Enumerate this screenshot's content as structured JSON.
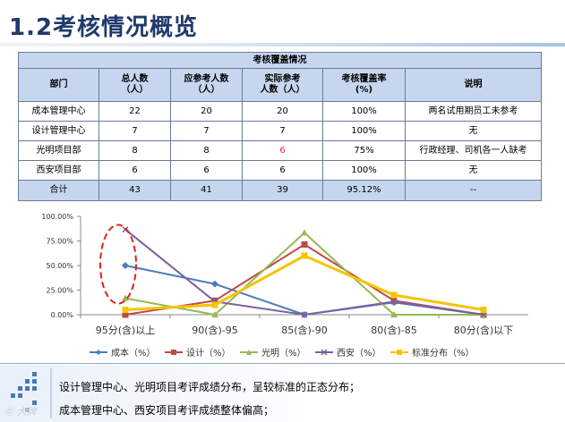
{
  "page": {
    "title": "1.2考核情况概览"
  },
  "table": {
    "caption": "考核覆盖情况",
    "headers": [
      "部门",
      "总人数（人）",
      "应参考人数（人）",
      "实际参考人数（人）",
      "考核覆盖率(%)",
      "说明"
    ],
    "header_lines": [
      [
        "部门"
      ],
      [
        "总人数",
        "（人）"
      ],
      [
        "应参考人数",
        "（人）"
      ],
      [
        "实际参考",
        "人数（人）"
      ],
      [
        "考核覆盖率",
        "(%)"
      ],
      [
        "说明"
      ]
    ],
    "rows": [
      [
        "成本管理中心",
        "22",
        "20",
        "20",
        "100%",
        "两名试用期员工未参考"
      ],
      [
        "设计管理中心",
        "7",
        "7",
        "7",
        "100%",
        "无"
      ],
      [
        "光明项目部",
        "8",
        "8",
        "6",
        "75%",
        "行政经理、司机各一人缺考"
      ],
      [
        "西安项目部",
        "6",
        "6",
        "6",
        "100%",
        "无"
      ]
    ],
    "total": [
      "合计",
      "43",
      "41",
      "39",
      "95.12%",
      "--"
    ],
    "highlight_color": "#e03030"
  },
  "chart_data": {
    "type": "line",
    "categories": [
      "95分(含)以上",
      "90(含)-95",
      "85(含)-90",
      "80(含)-85",
      "80分(含)以下"
    ],
    "ylim": [
      0,
      1
    ],
    "yticks": [
      "0.00%",
      "25.00%",
      "50.00%",
      "75.00%",
      "100.00%"
    ],
    "series": [
      {
        "name": "成本（%）",
        "color": "#4a7ebb",
        "marker": "diamond",
        "values": [
          0.5,
          0.3125,
          0.0,
          0.125,
          0.0
        ]
      },
      {
        "name": "设计（%）",
        "color": "#be4b48",
        "marker": "square",
        "values": [
          0.0,
          0.1428,
          0.7143,
          0.1429,
          0.0
        ]
      },
      {
        "name": "光明（%）",
        "color": "#98b954",
        "marker": "triangle",
        "values": [
          0.1667,
          0.0,
          0.8333,
          0.0,
          0.0
        ]
      },
      {
        "name": "西安（%）",
        "color": "#7d5fa0",
        "marker": "x",
        "values": [
          0.8667,
          0.1333,
          0.0,
          0.1333,
          0.0
        ]
      },
      {
        "name": "标准分布（%）",
        "color": "#f5c400",
        "marker": "square",
        "values": [
          0.05,
          0.1,
          0.6,
          0.2,
          0.05
        ]
      }
    ],
    "annotation": "red dashed ellipse around 95分(含)以上 cluster",
    "legend": "bottom",
    "grid": false
  },
  "notes": [
    "设计管理中心、光明项目考评成绩分布，呈较标准的正态分布；",
    "成本管理中心、西安项目考评成绩整体偏高；"
  ],
  "watermark": "大牌PPT"
}
